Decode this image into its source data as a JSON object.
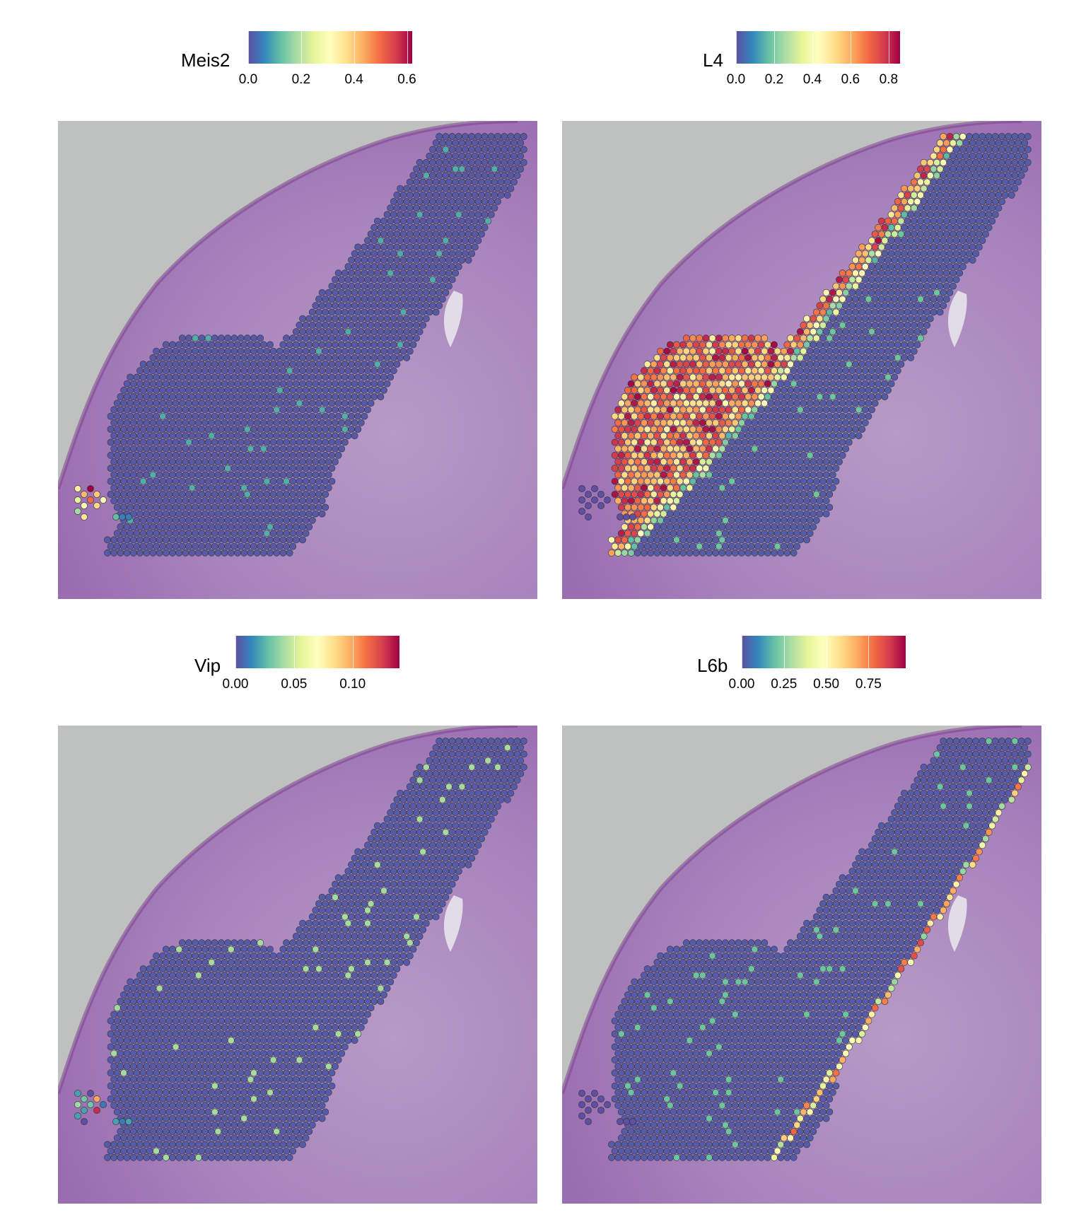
{
  "colors": {
    "scale": [
      "#5e4fa2",
      "#3288bd",
      "#66c2a5",
      "#abdda4",
      "#e6f598",
      "#ffffbf",
      "#fee08b",
      "#fdae61",
      "#f46d43",
      "#d53e4f",
      "#9e0142"
    ],
    "spot_outline": "#333333",
    "tissue_base": "#b080b8",
    "background_slide": "#bfc0c0"
  },
  "chart_data": [
    {
      "type": "scatter",
      "title": "",
      "legend_title": "Meis2",
      "legend_placement": "top",
      "color_scale": "Spectral (reversed)",
      "ticks": [
        "0.0",
        "0.2",
        "0.4",
        "0.6"
      ],
      "tick_values": [
        0.0,
        0.2,
        0.4,
        0.6
      ],
      "range": [
        0,
        0.62
      ],
      "pattern": "mostly-low; high in small lower-left cluster"
    },
    {
      "type": "scatter",
      "title": "",
      "legend_title": "L4",
      "legend_placement": "top",
      "color_scale": "Spectral (reversed)",
      "ticks": [
        "0.0",
        "0.2",
        "0.4",
        "0.6",
        "0.8"
      ],
      "tick_values": [
        0.0,
        0.2,
        0.4,
        0.6,
        0.8
      ],
      "range": [
        0,
        0.86
      ],
      "pattern": "high band along outer cortical edge"
    },
    {
      "type": "scatter",
      "title": "",
      "legend_title": "Vip",
      "legend_placement": "top",
      "color_scale": "Spectral (reversed)",
      "ticks": [
        "0.00",
        "0.05",
        "0.10"
      ],
      "tick_values": [
        0.0,
        0.05,
        0.1
      ],
      "range": [
        0,
        0.14
      ],
      "pattern": "sparse scattered moderate spots"
    },
    {
      "type": "scatter",
      "title": "",
      "legend_title": "L6b",
      "legend_placement": "top",
      "color_scale": "Spectral (reversed)",
      "ticks": [
        "0.00",
        "0.25",
        "0.50",
        "0.75"
      ],
      "tick_values": [
        0.0,
        0.25,
        0.5,
        0.75
      ],
      "range": [
        0,
        0.97
      ],
      "pattern": "thin high diagonal band along inner boundary"
    }
  ]
}
